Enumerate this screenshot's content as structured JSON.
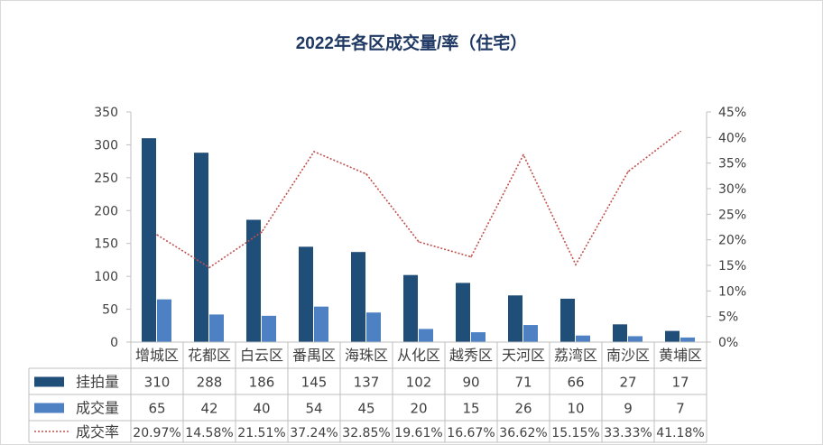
{
  "chart_data": {
    "type": "bar",
    "title": "2022年各区成交量/率（住宅）",
    "categories": [
      "增城区",
      "花都区",
      "白云区",
      "番禺区",
      "海珠区",
      "从化区",
      "越秀区",
      "天河区",
      "荔湾区",
      "南沙区",
      "黄埔区"
    ],
    "series": [
      {
        "name": "挂拍量",
        "type": "bar",
        "axis": "left",
        "color": "#1f4e79",
        "values": [
          310,
          288,
          186,
          145,
          137,
          102,
          90,
          71,
          66,
          27,
          17
        ],
        "labels": [
          "310",
          "288",
          "186",
          "145",
          "137",
          "102",
          "90",
          "71",
          "66",
          "27",
          "17"
        ]
      },
      {
        "name": "成交量",
        "type": "bar",
        "axis": "left",
        "color": "#4e81c4",
        "values": [
          65,
          42,
          40,
          54,
          45,
          20,
          15,
          26,
          10,
          9,
          7
        ],
        "labels": [
          "65",
          "42",
          "40",
          "54",
          "45",
          "20",
          "15",
          "26",
          "10",
          "9",
          "7"
        ]
      },
      {
        "name": "成交率",
        "type": "line",
        "axis": "right",
        "color": "#c0504d",
        "dash": "dotted",
        "values": [
          20.97,
          14.58,
          21.51,
          37.24,
          32.85,
          19.61,
          16.67,
          36.62,
          15.15,
          33.33,
          41.18
        ],
        "labels": [
          "20.97%",
          "14.58%",
          "21.51%",
          "37.24%",
          "32.85%",
          "19.61%",
          "16.67%",
          "36.62%",
          "15.15%",
          "33.33%",
          "41.18%"
        ]
      }
    ],
    "y_left": {
      "range": [
        0,
        350
      ],
      "ticks": [
        0,
        50,
        100,
        150,
        200,
        250,
        300,
        350
      ],
      "tick_labels": [
        "0",
        "50",
        "100",
        "150",
        "200",
        "250",
        "300",
        "350"
      ]
    },
    "y_right": {
      "range": [
        0,
        45
      ],
      "ticks": [
        0,
        5,
        10,
        15,
        20,
        25,
        30,
        35,
        40,
        45
      ],
      "tick_labels": [
        "0%",
        "5%",
        "10%",
        "15%",
        "20%",
        "25%",
        "30%",
        "35%",
        "40%",
        "45%"
      ]
    },
    "grid": false,
    "legend": "data-table-below"
  }
}
